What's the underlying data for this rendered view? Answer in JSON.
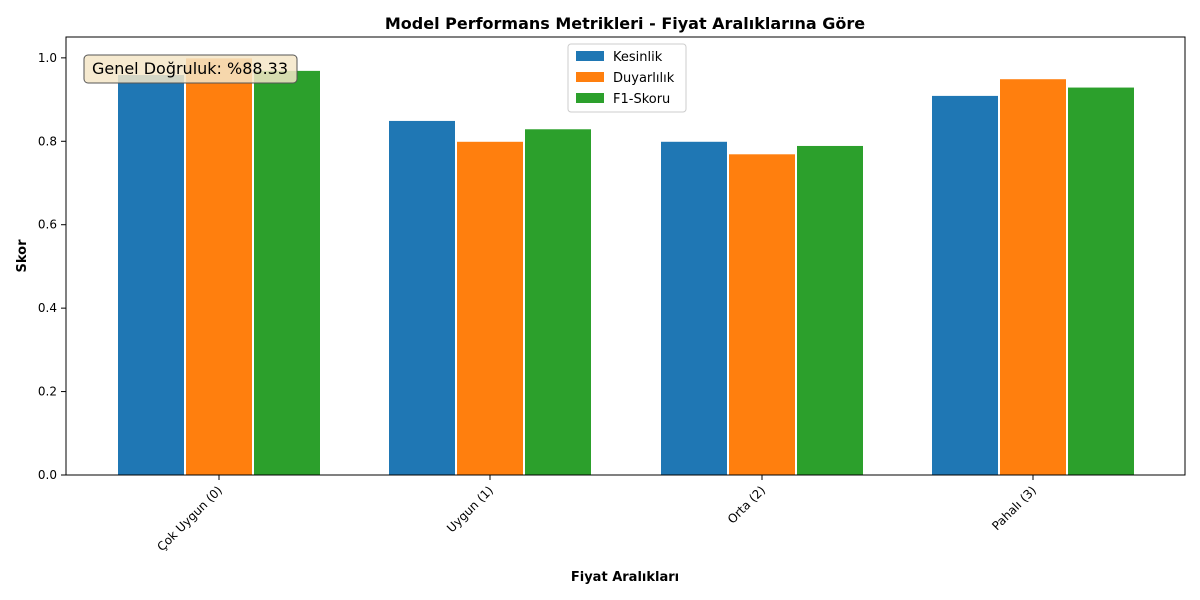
{
  "chart_data": {
    "type": "bar",
    "title": "Model Performans Metrikleri - Fiyat Aralıklarına Göre",
    "xlabel": "Fiyat Aralıkları",
    "ylabel": "Skor",
    "categories": [
      "Çok Uygun (0)",
      "Uygun (1)",
      "Orta (2)",
      "Pahalı (3)"
    ],
    "series": [
      {
        "name": "Kesinlik",
        "color": "#1f77b4",
        "values": [
          0.96,
          0.85,
          0.8,
          0.91
        ]
      },
      {
        "name": "Duyarlılık",
        "color": "#ff7f0e",
        "values": [
          1.0,
          0.8,
          0.77,
          0.95
        ]
      },
      {
        "name": "F1-Skoru",
        "color": "#2ca02c",
        "values": [
          0.97,
          0.83,
          0.79,
          0.93
        ]
      }
    ],
    "ylim": [
      0,
      1.05
    ],
    "yticks": [
      "0.0",
      "0.2",
      "0.4",
      "0.6",
      "0.8",
      "1.0"
    ],
    "ytick_values": [
      0,
      0.2,
      0.4,
      0.6,
      0.8,
      1.0
    ],
    "grid": false,
    "legend_position": "top-center",
    "annotation": "Genel Doğruluk: %88.33"
  }
}
